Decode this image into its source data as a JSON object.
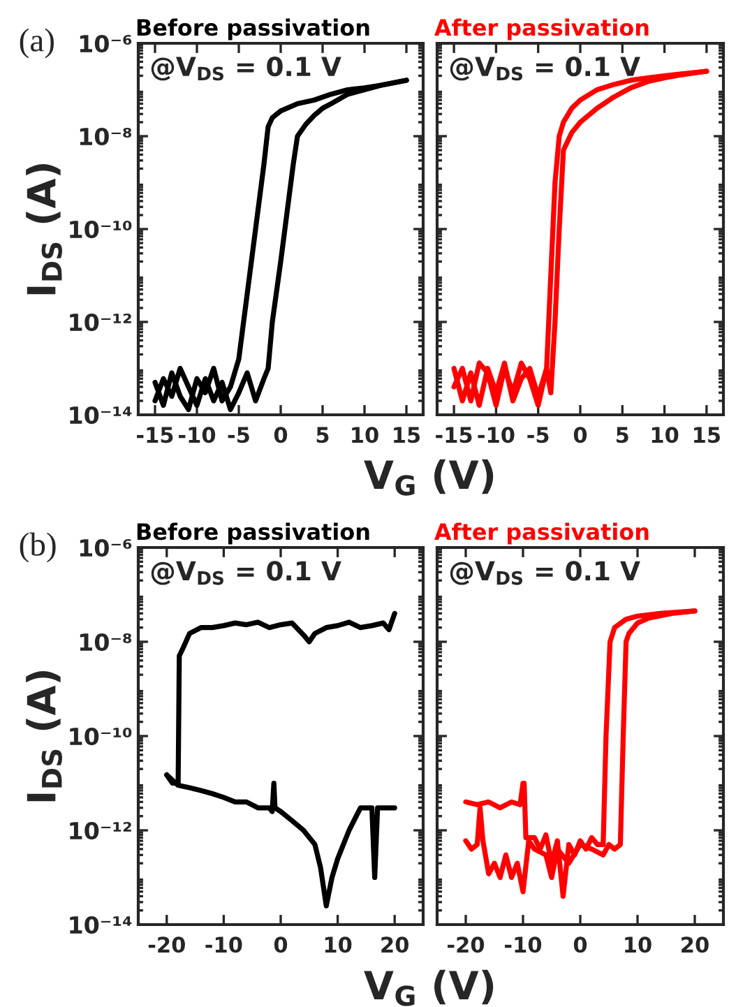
{
  "chart_data": [
    {
      "type": "line",
      "title": "Before passivation",
      "ylabel": "I$_{DS}$ (A)",
      "xlabel": "V$_{G}$ (V)",
      "annotations": [
        "@V$_{DS}$ = 0.1 V",
        "(a)"
      ],
      "log": "y",
      "grid": false,
      "legend": false,
      "xlim": [
        -17,
        17
      ],
      "xticks": [
        -15,
        -10,
        -5,
        0,
        5,
        10,
        15
      ],
      "ylim": [
        1e-14,
        1e-06
      ],
      "yticks": [
        {
          "value": 1e-14,
          "label": "10⁻¹⁴"
        },
        {
          "value": 1e-12,
          "label": "10⁻¹²"
        },
        {
          "value": 1e-10,
          "label": "10⁻¹⁰"
        },
        {
          "value": 1e-08,
          "label": "10⁻⁸"
        },
        {
          "value": 1e-06,
          "label": "10⁻⁶"
        }
      ],
      "marker": "none",
      "line_style": "solid",
      "series": [
        {
          "color": "#000000",
          "x": [
            -15,
            -14,
            -13,
            -12,
            -11,
            -10,
            -9,
            -8,
            -7,
            -6,
            -5,
            -4,
            -3,
            -2,
            -1.5,
            -1,
            0,
            2,
            4,
            6,
            8,
            10,
            12,
            15
          ],
          "values": [
            5e-14,
            1.6e-14,
            8e-14,
            2.5e-14,
            1.3e-14,
            6e-14,
            3e-14,
            1e-13,
            2e-14,
            4e-14,
            1.6e-13,
            4e-12,
            1e-10,
            2.5e-09,
            1.6e-08,
            2.5e-08,
            3.5e-08,
            5e-08,
            6e-08,
            8e-08,
            1e-07,
            1.1e-07,
            1.25e-07,
            1.6e-07
          ]
        },
        {
          "color": "#000000",
          "x": [
            15,
            12,
            10,
            8,
            6,
            5,
            4,
            3,
            2,
            1.5,
            1,
            0,
            -1,
            -1.5,
            -2,
            -3,
            -4,
            -5,
            -6,
            -7,
            -8,
            -9,
            -10,
            -11,
            -12,
            -13,
            -14,
            -15
          ],
          "values": [
            1.6e-07,
            1.25e-07,
            1e-07,
            8e-08,
            5e-08,
            4e-08,
            2.8e-08,
            1.8e-08,
            1e-08,
            2.5e-09,
            5e-10,
            2e-11,
            1e-12,
            1e-13,
            6e-14,
            2e-14,
            8e-14,
            3e-14,
            1.3e-14,
            5e-14,
            2e-14,
            6e-14,
            1.6e-14,
            4e-14,
            1e-13,
            2.5e-14,
            6e-14,
            2e-14
          ]
        }
      ]
    },
    {
      "type": "line",
      "title": "After passivation",
      "annotations": [
        "@V$_{DS}$ = 0.1 V"
      ],
      "log": "y",
      "grid": false,
      "legend": false,
      "tick_labels": "x",
      "xlim": [
        -17,
        17
      ],
      "xticks": [
        -15,
        -10,
        -5,
        0,
        5,
        10,
        15
      ],
      "ylim": [
        1e-14,
        1e-06
      ],
      "yticks": [
        1e-14,
        1e-12,
        1e-10,
        1e-08,
        1e-06
      ],
      "marker": "none",
      "line_style": "solid",
      "series": [
        {
          "color": "#ff0000",
          "x": [
            -15,
            -14,
            -13,
            -12,
            -11,
            -10,
            -9,
            -8,
            -7,
            -6,
            -5,
            -4,
            -3.5,
            -3,
            -2.5,
            -2,
            -1,
            0,
            2,
            4,
            6,
            8,
            10,
            12,
            15
          ],
          "values": [
            1e-13,
            2e-14,
            8e-14,
            1.6e-14,
            1e-13,
            3e-14,
            1.3e-13,
            2e-14,
            6e-14,
            1e-13,
            2.5e-14,
            1e-13,
            1e-11,
            1e-09,
            1e-08,
            2e-08,
            4e-08,
            6e-08,
            1e-07,
            1.3e-07,
            1.6e-07,
            1.8e-07,
            2e-07,
            2.2e-07,
            2.5e-07
          ]
        },
        {
          "color": "#ff0000",
          "x": [
            15,
            12,
            10,
            8,
            6,
            4,
            2,
            0,
            -1,
            -2,
            -2.5,
            -3,
            -3.5,
            -4,
            -5,
            -6,
            -7,
            -8,
            -9,
            -10,
            -11,
            -12,
            -13,
            -14,
            -15
          ],
          "values": [
            2.5e-07,
            2.1e-07,
            1.8e-07,
            1.5e-07,
            1.1e-07,
            7e-08,
            4e-08,
            2e-08,
            1.2e-08,
            5e-09,
            1e-10,
            1e-12,
            3e-14,
            1e-13,
            1.6e-14,
            6e-14,
            1.3e-13,
            3e-14,
            1e-13,
            1.6e-14,
            8e-14,
            1.3e-13,
            2e-14,
            1e-13,
            4e-14
          ]
        }
      ]
    },
    {
      "type": "line",
      "title": "Before passivation",
      "ylabel": "I$_{DS}$ (A)",
      "xlabel": "V$_{G}$ (V)",
      "annotations": [
        "@V$_{DS}$ = 0.1 V",
        "(b)"
      ],
      "log": "y",
      "grid": false,
      "legend": false,
      "xlim": [
        -25,
        25
      ],
      "xticks": [
        -20,
        -10,
        0,
        10,
        20
      ],
      "ylim": [
        1e-14,
        1e-06
      ],
      "yticks": [
        {
          "value": 1e-14,
          "label": "10⁻¹⁴"
        },
        {
          "value": 1e-12,
          "label": "10⁻¹²"
        },
        {
          "value": 1e-10,
          "label": "10⁻¹⁰"
        },
        {
          "value": 1e-08,
          "label": "10⁻⁸"
        },
        {
          "value": 1e-06,
          "label": "10⁻⁶"
        }
      ],
      "marker": "none",
      "line_style": "solid",
      "series": [
        {
          "color": "#000000",
          "x": [
            -20,
            -19,
            -18,
            -17.8,
            -17,
            -16,
            -14,
            -12,
            -10,
            -8,
            -6,
            -4,
            -2,
            0,
            2,
            4,
            5,
            6,
            8,
            10,
            12,
            14,
            16,
            18,
            19,
            20
          ],
          "values": [
            1.5e-11,
            1e-11,
            1e-11,
            5e-09,
            8e-09,
            1.5e-08,
            2e-08,
            2e-08,
            2.2e-08,
            2.5e-08,
            2.3e-08,
            2.6e-08,
            2e-08,
            2.3e-08,
            2.5e-08,
            1.4e-08,
            1e-08,
            1.5e-08,
            2e-08,
            2.2e-08,
            2.6e-08,
            2e-08,
            2.2e-08,
            2.5e-08,
            1.8e-08,
            4e-08
          ]
        },
        {
          "color": "#000000",
          "x": [
            20,
            18,
            17,
            16.5,
            16,
            14,
            12,
            10,
            9,
            8,
            7,
            6,
            4,
            2,
            0,
            -1,
            -1.2,
            -1.5,
            -2,
            -4,
            -6,
            -8,
            -10,
            -12,
            -14,
            -16,
            -18,
            -20
          ],
          "values": [
            3e-12,
            3e-12,
            3e-12,
            1e-13,
            3e-12,
            3e-12,
            1e-12,
            2.5e-13,
            1e-13,
            2.5e-14,
            1.6e-13,
            5e-13,
            1e-12,
            1.6e-12,
            2.5e-12,
            3e-12,
            1e-11,
            2.5e-12,
            3e-12,
            3e-12,
            4e-12,
            4e-12,
            5e-12,
            6e-12,
            7e-12,
            8e-12,
            9e-12,
            1.5e-11
          ]
        }
      ]
    },
    {
      "type": "line",
      "title": "After passivation",
      "annotations": [
        "@V$_{DS}$ = 0.1 V"
      ],
      "log": "y",
      "grid": false,
      "legend": false,
      "tick_labels": "x",
      "xlim": [
        -25,
        25
      ],
      "xticks": [
        -20,
        -10,
        0,
        10,
        20
      ],
      "ylim": [
        1e-14,
        1e-06
      ],
      "yticks": [
        1e-14,
        1e-12,
        1e-10,
        1e-08,
        1e-06
      ],
      "marker": "none",
      "line_style": "solid",
      "series": [
        {
          "color": "#ff0000",
          "x": [
            -20,
            -18,
            -16,
            -14,
            -12,
            -10.5,
            -10,
            -9.8,
            -9.5,
            -8,
            -7,
            -6,
            -5,
            -4,
            -3,
            -2,
            -1,
            0,
            1,
            2,
            3,
            4,
            4.5,
            5.2,
            6,
            8,
            10,
            14,
            20
          ],
          "values": [
            4e-12,
            3.5e-12,
            4e-12,
            3e-12,
            4e-12,
            3.5e-12,
            1e-11,
            1e-11,
            7e-13,
            7e-13,
            4e-13,
            8e-13,
            2e-13,
            6e-13,
            4e-14,
            5e-13,
            3e-13,
            6e-13,
            4e-13,
            7e-13,
            5e-13,
            5e-13,
            1e-10,
            1e-08,
            2e-08,
            3e-08,
            3.5e-08,
            4e-08,
            4.5e-08
          ]
        },
        {
          "color": "#ff0000",
          "x": [
            20,
            16,
            12,
            10,
            8.5,
            8,
            7.5,
            7,
            6,
            5,
            4,
            2,
            0,
            -2,
            -4,
            -5,
            -6,
            -8,
            -9,
            -10,
            -11,
            -12,
            -13,
            -14,
            -15,
            -16,
            -17,
            -17.5,
            -18,
            -19,
            -20
          ],
          "values": [
            4.5e-08,
            4e-08,
            3.2e-08,
            2.5e-08,
            1.5e-08,
            1e-08,
            1e-10,
            5e-13,
            4e-13,
            5e-13,
            3e-13,
            4e-13,
            5e-13,
            2e-13,
            4e-13,
            1e-13,
            3e-13,
            4e-13,
            6e-13,
            5e-14,
            2e-13,
            1e-13,
            3e-13,
            1e-13,
            2e-13,
            1.2e-13,
            6e-13,
            3e-12,
            5e-13,
            4e-13,
            6e-13
          ]
        }
      ]
    }
  ]
}
